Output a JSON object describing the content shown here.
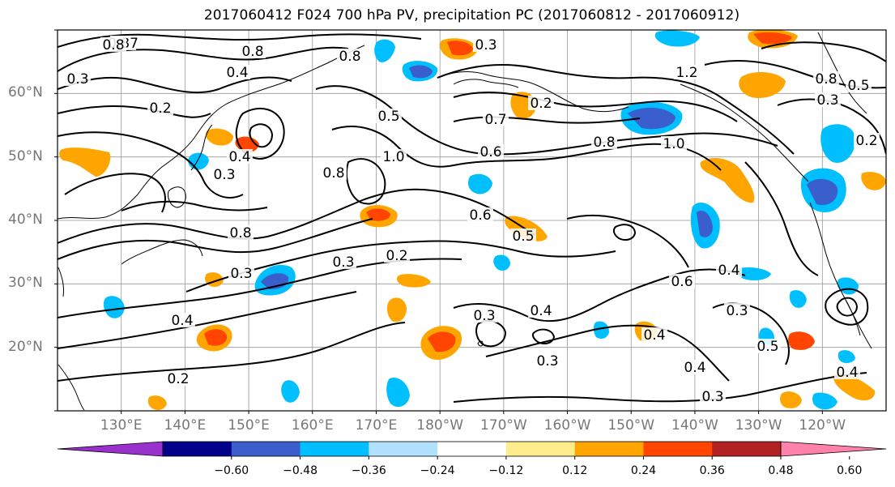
{
  "title": "2017060412 F024 700 hPa PV, precipitation PC (2017060812 - 2017060912)",
  "map": {
    "lat_labels": [
      "60°N",
      "50°N",
      "40°N",
      "30°N",
      "20°N"
    ],
    "lon_labels": [
      "130°E",
      "140°E",
      "150°E",
      "160°E",
      "170°E",
      "180°W",
      "170°W",
      "160°W",
      "150°W",
      "140°W",
      "130°W",
      "120°W"
    ],
    "lat_values": [
      60,
      50,
      40,
      30,
      20
    ],
    "lon_values": [
      130,
      140,
      150,
      160,
      170,
      180,
      190,
      200,
      210,
      220,
      230,
      240
    ],
    "extent": {
      "lon_min": 120,
      "lon_max": 250,
      "lat_min": 10,
      "lat_max": 70
    },
    "contour_labels": [
      "0.87",
      "0.8",
      "0.4",
      "0.3",
      "0.2",
      "0.3",
      "0.4",
      "0.8",
      "0.8",
      "0.5",
      "1.0",
      "0.8",
      "0.6",
      "0.3",
      "0.2",
      "0.3",
      "0.4",
      "0.2",
      "0.2",
      "0.7",
      "0.6",
      "0.8",
      "1.0",
      "1.2",
      "0.6",
      "0.5",
      "0.3",
      "0.4",
      "0.3",
      "0.4",
      "0.5",
      "0.4",
      "0.3",
      "0.3",
      "0.3",
      "0.4",
      "0.2",
      "0.8",
      "0.5",
      "0.3",
      "0.8",
      "0.4"
    ]
  },
  "colorbar": {
    "colors": [
      "#9932cc",
      "#00008b",
      "#3a5fcd",
      "#00bfff",
      "#b0e2ff",
      "#ffffff",
      "#ffec8b",
      "#ffa500",
      "#ff4500",
      "#b22222",
      "#ff82ab"
    ],
    "tick_labels": [
      "−0.60",
      "−0.48",
      "−0.36",
      "−0.24",
      "−0.12",
      "0.12",
      "0.24",
      "0.36",
      "0.48",
      "0.60"
    ]
  }
}
